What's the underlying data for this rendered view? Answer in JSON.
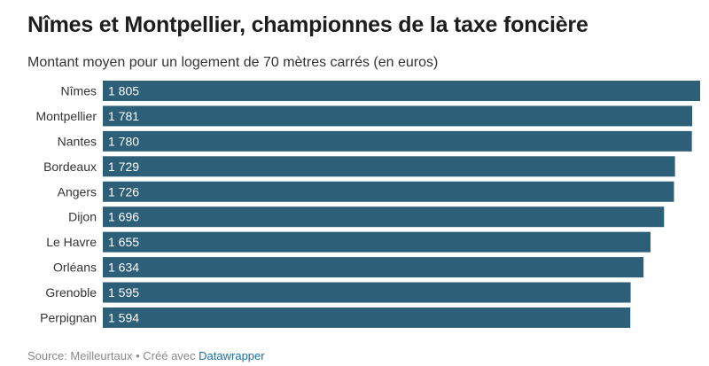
{
  "title": "Nîmes et Montpellier, championnes de la taxe foncière",
  "subtitle": "Montant moyen pour un logement de 70 mètres carrés (en euros)",
  "footer": {
    "source": "Source: Meilleurtaux",
    "separator": " • ",
    "made_with": "Créé avec ",
    "tool": "Datawrapper"
  },
  "colors": {
    "bar": "#2e5f78",
    "label": "#ffffff"
  },
  "chart_data": {
    "type": "bar",
    "orientation": "horizontal",
    "categories": [
      "Nîmes",
      "Montpellier",
      "Nantes",
      "Bordeaux",
      "Angers",
      "Dijon",
      "Le Havre",
      "Orléans",
      "Grenoble",
      "Perpignan"
    ],
    "values": [
      1805,
      1781,
      1780,
      1729,
      1726,
      1696,
      1655,
      1634,
      1595,
      1594
    ],
    "value_labels": [
      "1 805",
      "1 781",
      "1 780",
      "1 729",
      "1 726",
      "1 696",
      "1 655",
      "1 634",
      "1 595",
      "1 594"
    ],
    "title": "Nîmes et Montpellier, championnes de la taxe foncière",
    "xlabel": "",
    "ylabel": "",
    "xlim": [
      0,
      1805
    ]
  }
}
